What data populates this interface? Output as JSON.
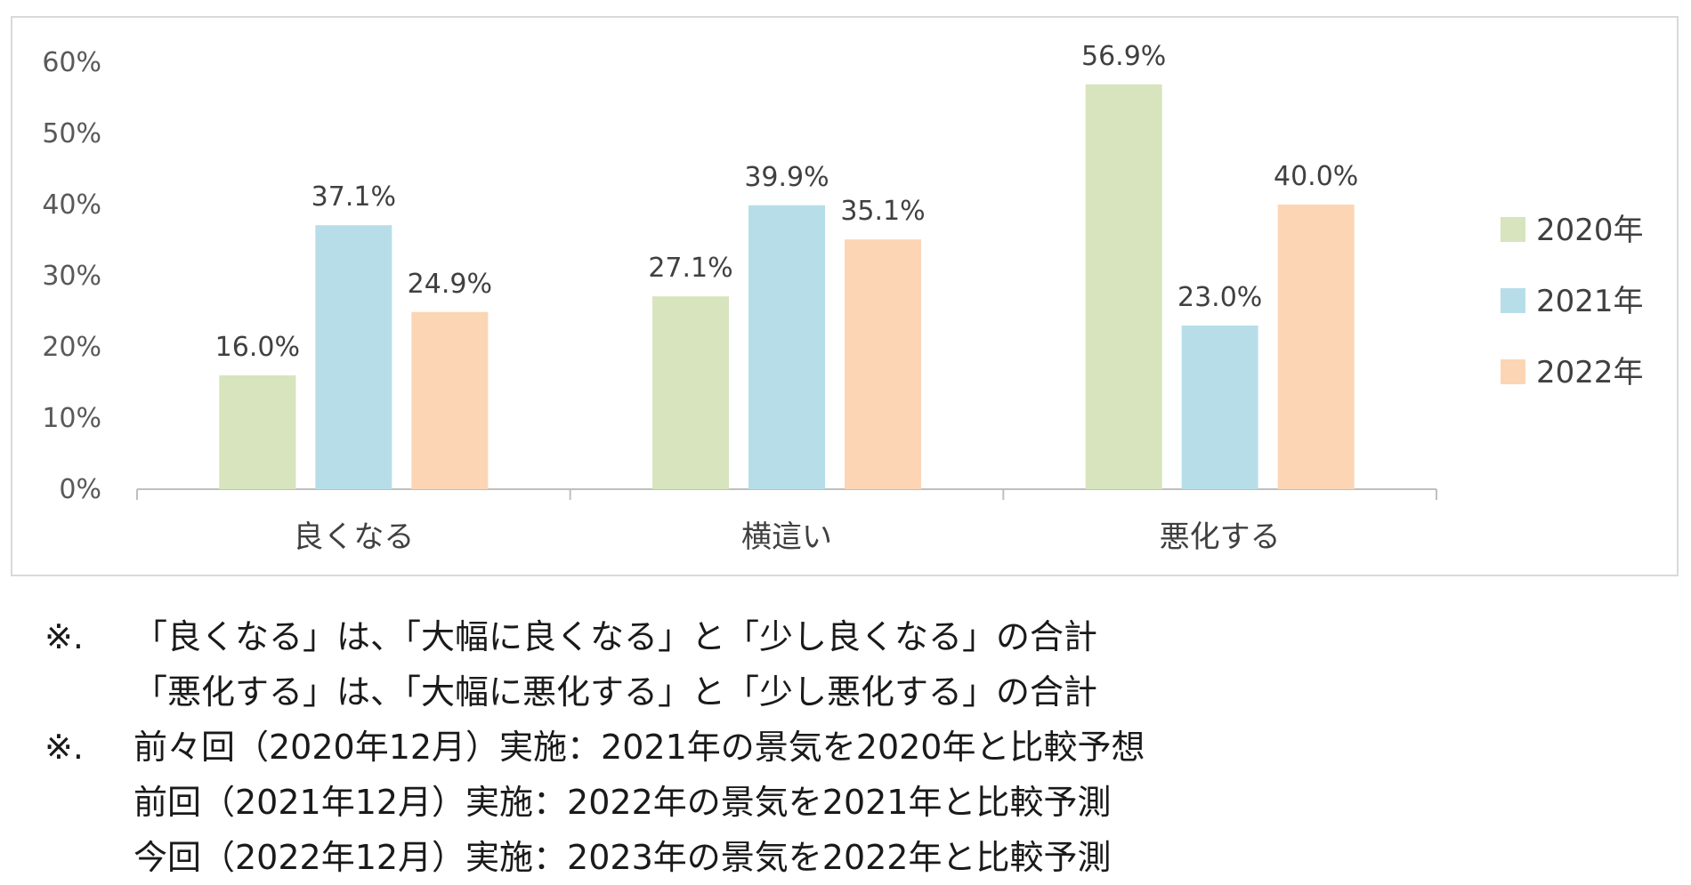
{
  "chart_data": {
    "type": "bar",
    "title": "",
    "xlabel": "",
    "ylabel": "",
    "categories": [
      "良くなる",
      "横這い",
      "悪化する"
    ],
    "series": [
      {
        "name": "2020年",
        "color": "#d7e4bd",
        "values": [
          16.0,
          27.1,
          56.9
        ]
      },
      {
        "name": "2021年",
        "color": "#b7dee8",
        "values": [
          37.1,
          39.9,
          23.0
        ]
      },
      {
        "name": "2022年",
        "color": "#fcd5b5",
        "values": [
          24.9,
          35.1,
          40.0
        ]
      }
    ],
    "data_labels": [
      [
        "16.0%",
        "27.1%",
        "56.9%"
      ],
      [
        "37.1%",
        "39.9%",
        "23.0%"
      ],
      [
        "24.9%",
        "35.1%",
        "40.0%"
      ]
    ],
    "ylim": [
      0,
      60
    ],
    "yticks": [
      0,
      10,
      20,
      30,
      40,
      50,
      60
    ],
    "ytick_labels": [
      "0%",
      "10%",
      "20%",
      "30%",
      "40%",
      "50%",
      "60%"
    ],
    "grid": false,
    "legend": "right"
  },
  "notes": [
    {
      "mark": "※.",
      "text": "「良くなる」は、「大幅に良くなる」と「少し良くなる」の合計"
    },
    {
      "mark": "",
      "text": "「悪化する」は、「大幅に悪化する」と「少し悪化する」の合計"
    },
    {
      "mark": "※.",
      "text": "前々回（2020年12月）実施：2021年の景気を2020年と比較予想"
    },
    {
      "mark": "",
      "text": "前回（2021年12月）実施：2022年の景気を2021年と比較予測"
    },
    {
      "mark": "",
      "text": "今回（2022年12月）実施：2023年の景気を2022年と比較予測"
    }
  ]
}
